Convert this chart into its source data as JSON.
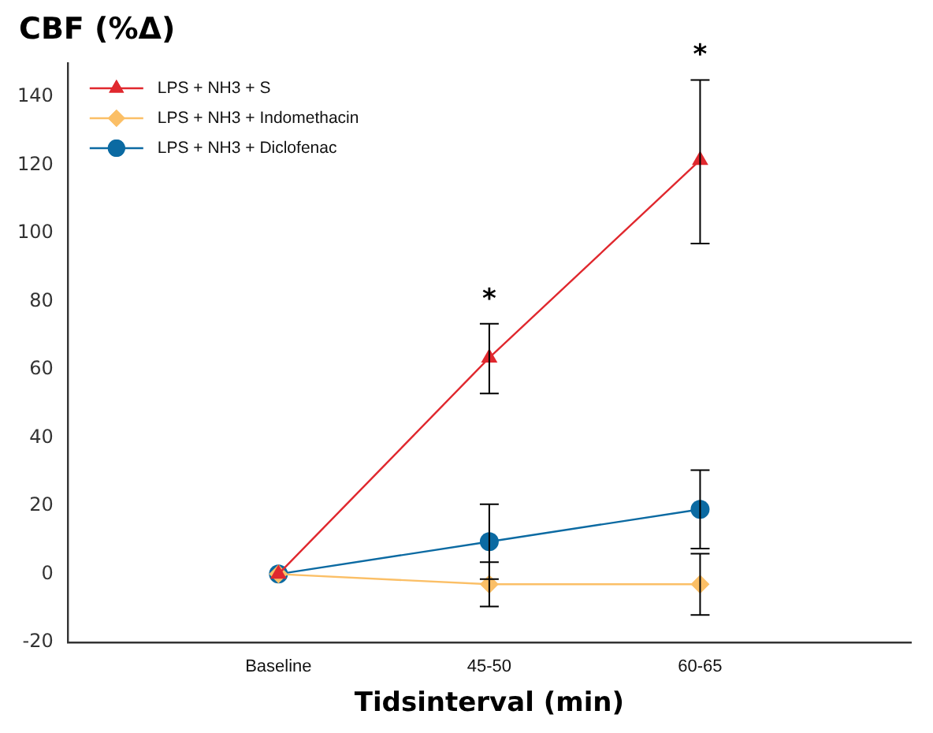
{
  "chart_data": {
    "type": "line",
    "ylabel": "CBF (%Δ)",
    "xlabel": "Tidsinterval (min)",
    "categories": [
      null,
      "Baseline",
      "45-50",
      "60-65",
      null
    ],
    "series": [
      {
        "name": "LPS + NH3 + S",
        "color": "#e0282e",
        "marker": "triangle",
        "values": [
          null,
          0,
          63.5,
          121.5,
          null
        ],
        "errors": [
          null,
          null,
          [
            53,
            73.5
          ],
          [
            97,
            145
          ],
          null
        ]
      },
      {
        "name": "LPS + NH3 + Indomethacin",
        "color": "#fbbf66",
        "marker": "diamond",
        "values": [
          null,
          0,
          -3,
          -3,
          null
        ],
        "errors": [
          null,
          null,
          [
            -9.5,
            3.5
          ],
          [
            -12,
            6
          ],
          null
        ]
      },
      {
        "name": "LPS + NH3 + Diclofenac",
        "color": "#0b6aa2",
        "marker": "circle",
        "values": [
          null,
          0,
          9.5,
          19,
          null
        ],
        "errors": [
          null,
          null,
          [
            -1.5,
            20.5
          ],
          [
            7.5,
            30.5
          ],
          null
        ]
      }
    ],
    "ylim": [
      -20,
      150
    ],
    "yticks": [
      -20,
      0,
      20,
      40,
      60,
      80,
      100,
      120,
      140
    ],
    "grid": false,
    "legend": "top left",
    "line_style": "solid",
    "annotations": [
      {
        "text": "*",
        "x": "45-50",
        "y": 73.5
      },
      {
        "text": "*",
        "x": "60-65",
        "y": 145
      }
    ]
  }
}
